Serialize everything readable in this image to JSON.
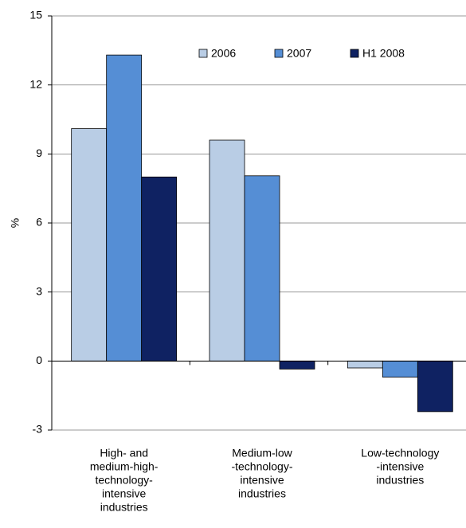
{
  "chart_data": {
    "type": "bar",
    "y_label": "%",
    "categories": [
      [
        "High- and",
        "medium-high-",
        "technology-",
        "intensive",
        "industries"
      ],
      [
        "Medium-low",
        "-technology-",
        "intensive",
        "industries"
      ],
      [
        "Low-technology",
        "-intensive",
        "industries"
      ]
    ],
    "series": [
      {
        "name": "2006",
        "color": "#b9cde5",
        "values": [
          10.1,
          9.6,
          -0.3
        ]
      },
      {
        "name": "2007",
        "color": "#558ed5",
        "values": [
          13.3,
          8.05,
          -0.7
        ]
      },
      {
        "name": "H1 2008",
        "color": "#0f2262",
        "values": [
          8.0,
          -0.35,
          -2.2
        ]
      }
    ],
    "ylim": [
      -3,
      15
    ],
    "yticks": [
      -3,
      0,
      3,
      6,
      9,
      12,
      15
    ],
    "grid": true
  }
}
